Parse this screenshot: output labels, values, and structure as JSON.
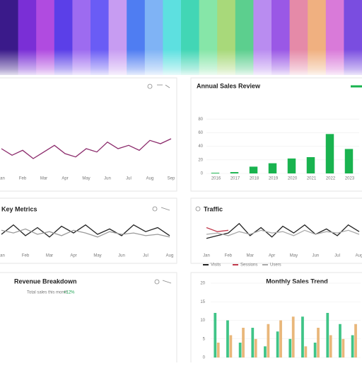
{
  "chart_data": [
    {
      "type": "line",
      "categories": [
        "Jan",
        null,
        "Feb",
        null,
        "Mar",
        null,
        "Apr",
        null,
        "May",
        null,
        "Jun",
        null,
        "Jul",
        null,
        "Aug",
        null,
        "Sep"
      ],
      "values": [
        30,
        22,
        28,
        18,
        26,
        34,
        24,
        20,
        30,
        26,
        38,
        30,
        34,
        28,
        40,
        36,
        42
      ],
      "color": "#8b2a6b",
      "ylim": [
        0,
        60
      ]
    },
    {
      "type": "bar",
      "title": "Annual Sales Review",
      "categories": [
        "2016",
        "2017",
        "2018",
        "2019",
        "2020",
        "2021",
        "2022",
        "2023"
      ],
      "values": [
        1,
        2,
        10,
        15,
        22,
        24,
        58,
        36
      ],
      "color": "#19b34f",
      "ylim": [
        0,
        100
      ],
      "yticks": [
        0,
        20,
        40,
        60,
        80
      ]
    },
    {
      "type": "line",
      "title": "Key Metrics",
      "categories": [
        "Jan",
        null,
        "Feb",
        null,
        "Mar",
        null,
        "Apr",
        null,
        "May",
        null,
        "Jun",
        null,
        "Jul",
        null,
        "Aug"
      ],
      "series": [
        {
          "color": "#222222",
          "values": [
            20,
            34,
            18,
            30,
            16,
            32,
            22,
            34,
            20,
            28,
            18,
            34,
            24,
            30,
            18
          ]
        },
        {
          "color": "#9a9a9a",
          "values": [
            26,
            22,
            28,
            20,
            24,
            18,
            26,
            22,
            16,
            24,
            20,
            22,
            18,
            20,
            16
          ]
        }
      ],
      "ylim": [
        0,
        40
      ]
    },
    {
      "type": "line",
      "title": "Traffic",
      "categories": [
        "Jan",
        null,
        "Feb",
        null,
        "Mar",
        null,
        "Apr",
        null,
        "May",
        null,
        "Jun",
        null,
        "Jul",
        null,
        "Aug"
      ],
      "series": [
        {
          "name": "Visits",
          "color": "#222222",
          "values": [
            14,
            18,
            22,
            36,
            18,
            30,
            16,
            32,
            22,
            34,
            20,
            28,
            18,
            34,
            24
          ]
        },
        {
          "name": "Sessions",
          "color": "#c0394b",
          "values": [
            30,
            24,
            26,
            null,
            null,
            null,
            null,
            null,
            null,
            null,
            null,
            null,
            null,
            null,
            null
          ]
        },
        {
          "name": "Users",
          "color": "#aaaaaa",
          "values": [
            20,
            22,
            18,
            24,
            20,
            26,
            22,
            24,
            18,
            26,
            20,
            24,
            22,
            26,
            20
          ]
        }
      ],
      "ylim": [
        0,
        40
      ]
    },
    {
      "type": "bar",
      "title": "Monthly Sales Trend",
      "categories": [
        null,
        null,
        null,
        null,
        null,
        null,
        null,
        null,
        null,
        null,
        null,
        null
      ],
      "series": [
        {
          "color": "#3fc487",
          "values": [
            12,
            10,
            4,
            8,
            3,
            7,
            5,
            11,
            4,
            12,
            9,
            6
          ]
        },
        {
          "color": "#e9b77a",
          "values": [
            4,
            6,
            8,
            5,
            9,
            10,
            11,
            3,
            8,
            6,
            5,
            9
          ]
        }
      ],
      "ylim": [
        0,
        20
      ],
      "yticks": [
        0,
        5,
        10,
        15,
        20
      ]
    }
  ],
  "text_panel": {
    "title": "Revenue Breakdown",
    "subtitle": "Total sales this month",
    "change": "+12%"
  }
}
